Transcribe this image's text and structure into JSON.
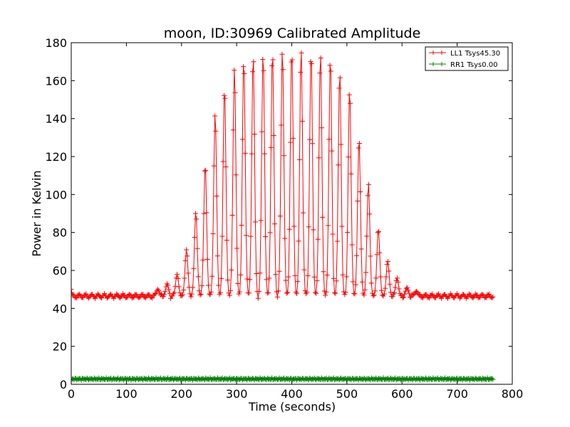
{
  "chart_data": {
    "type": "line",
    "title": "moon, ID:30969 Calibrated Amplitude",
    "xlabel": "Time (seconds)",
    "ylabel": "Power in Kelvin",
    "xlim": [
      0,
      800
    ],
    "ylim": [
      0,
      180
    ],
    "xticks": [
      "0",
      "100",
      "200",
      "300",
      "400",
      "500",
      "600",
      "700",
      "800"
    ],
    "yticks": [
      "0",
      "20",
      "40",
      "60",
      "80",
      "100",
      "120",
      "140",
      "160",
      "180"
    ],
    "grid": false,
    "legend_position": "top-right",
    "sample_interval_s": 1.67,
    "x_end": 765,
    "baseline_LL1": 46.5,
    "baseline_RR1": 2.8,
    "series": [
      {
        "name": "LL1 Tsys45.30",
        "color": "#ff0000",
        "marker": "+",
        "baseline": 46.5,
        "peaks": [
          {
            "t": 157,
            "v": 50
          },
          {
            "t": 174,
            "v": 53
          },
          {
            "t": 192,
            "v": 58
          },
          {
            "t": 209,
            "v": 71
          },
          {
            "t": 226,
            "v": 91
          },
          {
            "t": 243,
            "v": 116
          },
          {
            "t": 261,
            "v": 143
          },
          {
            "t": 278,
            "v": 157
          },
          {
            "t": 296,
            "v": 167
          },
          {
            "t": 313,
            "v": 172
          },
          {
            "t": 330,
            "v": 174
          },
          {
            "t": 348,
            "v": 175
          },
          {
            "t": 365,
            "v": 176
          },
          {
            "t": 383,
            "v": 177
          },
          {
            "t": 400,
            "v": 177
          },
          {
            "t": 417,
            "v": 177
          },
          {
            "t": 435,
            "v": 176
          },
          {
            "t": 452,
            "v": 175
          },
          {
            "t": 470,
            "v": 173
          },
          {
            "t": 487,
            "v": 165
          },
          {
            "t": 505,
            "v": 156
          },
          {
            "t": 522,
            "v": 130
          },
          {
            "t": 539,
            "v": 106
          },
          {
            "t": 557,
            "v": 82
          },
          {
            "t": 574,
            "v": 65
          },
          {
            "t": 591,
            "v": 56
          },
          {
            "t": 609,
            "v": 51
          },
          {
            "t": 626,
            "v": 49
          }
        ],
        "endpoints": [
          {
            "t": 0,
            "v": 50
          },
          {
            "t": 764,
            "v": 50
          }
        ]
      },
      {
        "name": "RR1 Tsys0.00",
        "color": "#008000",
        "marker": "+",
        "baseline": 2.8
      }
    ]
  }
}
